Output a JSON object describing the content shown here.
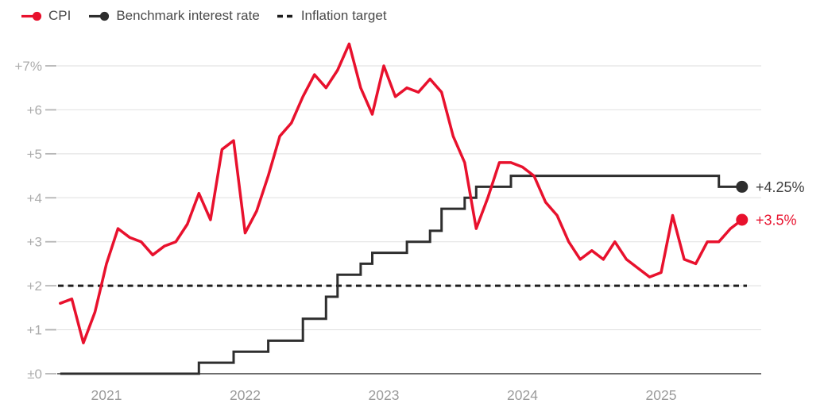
{
  "legend": {
    "items": [
      {
        "id": "cpi",
        "label": "CPI",
        "marker": "line-dot",
        "color": "#e8112d"
      },
      {
        "id": "benchmark",
        "label": "Benchmark interest rate",
        "marker": "line-dot",
        "color": "#2e2e2e"
      },
      {
        "id": "target",
        "label": "Inflation target",
        "marker": "dashes",
        "color": "#1d1d1d"
      }
    ]
  },
  "chart_data": {
    "type": "line",
    "title": "",
    "legend_position": "top-left",
    "grid": true,
    "x_axis": {
      "tick_labels": [
        "2021",
        "2022",
        "2023",
        "2024",
        "2025"
      ],
      "start_month": "2020-09",
      "end_month": "2025-08"
    },
    "y_axis": {
      "tick_labels": [
        "+7%",
        "+6",
        "+5",
        "+4",
        "+3",
        "+2",
        "+1",
        "±0"
      ],
      "tick_values": [
        7,
        6,
        5,
        4,
        3,
        2,
        1,
        0
      ],
      "min": 0,
      "max": 7.5,
      "unit": "percent"
    },
    "series": [
      {
        "name": "CPI",
        "kind": "monthly-line",
        "color": "#e8112d",
        "start_month": "2020-09",
        "values": [
          1.6,
          1.7,
          0.7,
          1.4,
          2.5,
          3.3,
          3.1,
          3.0,
          2.7,
          2.9,
          3.0,
          3.4,
          4.1,
          3.5,
          5.1,
          5.3,
          3.2,
          3.7,
          4.5,
          5.4,
          5.7,
          6.3,
          6.8,
          6.5,
          6.9,
          7.5,
          6.5,
          5.9,
          7.0,
          6.3,
          6.5,
          6.4,
          6.7,
          6.4,
          5.4,
          4.8,
          3.3,
          4.0,
          4.8,
          4.8,
          4.7,
          4.5,
          3.9,
          3.6,
          3.0,
          2.6,
          2.8,
          2.6,
          3.0,
          2.6,
          2.4,
          2.2,
          2.3,
          3.6,
          2.6,
          2.5,
          3.0,
          3.0,
          3.3,
          3.5
        ],
        "end_value": 3.5,
        "end_label": "+3.5%"
      },
      {
        "name": "Benchmark interest rate",
        "kind": "step-line",
        "color": "#2e2e2e",
        "steps": [
          [
            "2020-09",
            0
          ],
          [
            "2021-09",
            0.25
          ],
          [
            "2021-12",
            0.5
          ],
          [
            "2022-03",
            0.75
          ],
          [
            "2022-06",
            1.25
          ],
          [
            "2022-08",
            1.75
          ],
          [
            "2022-09",
            2.25
          ],
          [
            "2022-11",
            2.5
          ],
          [
            "2022-12",
            2.75
          ],
          [
            "2023-03",
            3.0
          ],
          [
            "2023-05",
            3.25
          ],
          [
            "2023-06",
            3.75
          ],
          [
            "2023-08",
            4.0
          ],
          [
            "2023-09",
            4.25
          ],
          [
            "2023-12",
            4.5
          ],
          [
            "2025-06",
            4.25
          ]
        ],
        "end_value": 4.25,
        "end_label": "+4.25%"
      },
      {
        "name": "Inflation target",
        "kind": "dashed-hline",
        "color": "#1d1d1d",
        "value": 2
      }
    ],
    "style_colors": {
      "grid_line": "#e4e4e4",
      "baseline": "#3f3f3f",
      "tick_mark": "#b5b5b5",
      "y_label": "#ababab",
      "x_label": "#9b9b9b",
      "benchmark_end_label": "#3f3f3f"
    }
  }
}
